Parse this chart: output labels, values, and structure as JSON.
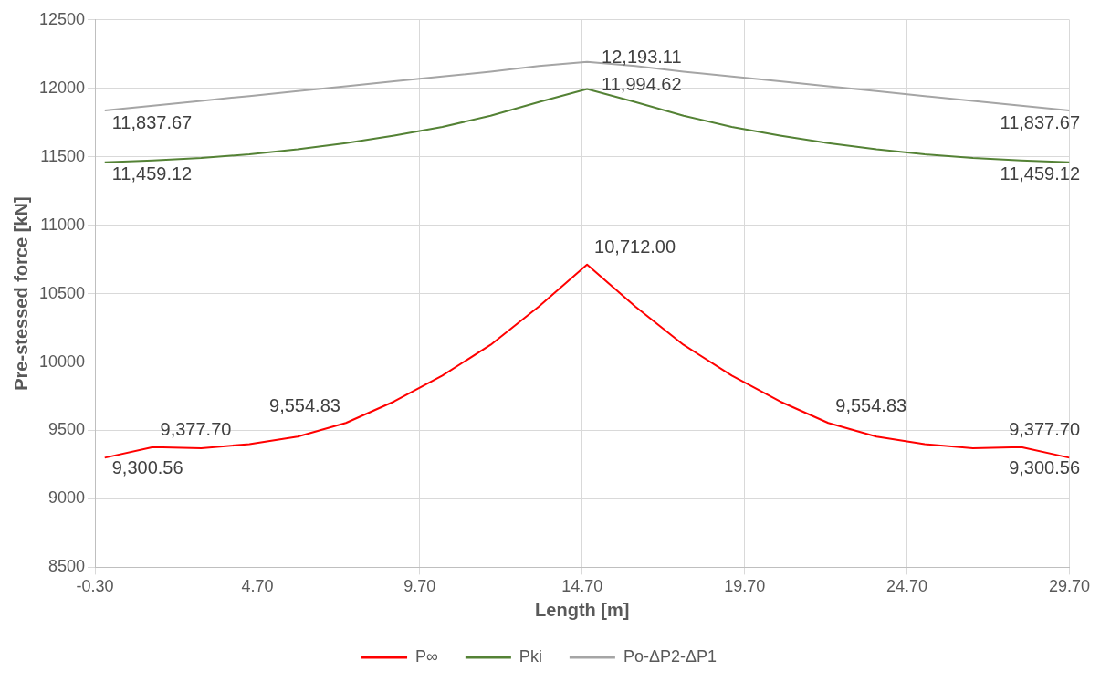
{
  "chart_data": {
    "type": "line",
    "xlabel": "Length [m]",
    "ylabel": "Pre-stessed force [kN]",
    "x": [
      0,
      1.485,
      2.97,
      4.455,
      5.94,
      7.425,
      8.91,
      10.395,
      11.88,
      13.365,
      14.85,
      16.335,
      17.82,
      19.305,
      20.79,
      22.275,
      23.76,
      25.245,
      26.73,
      28.215,
      29.7
    ],
    "xlim": [
      -0.3,
      29.7
    ],
    "xticks": [
      {
        "value": -0.3,
        "label": "-0.30"
      },
      {
        "value": 4.7,
        "label": "4.70"
      },
      {
        "value": 9.7,
        "label": "9.70"
      },
      {
        "value": 14.7,
        "label": "14.70"
      },
      {
        "value": 19.7,
        "label": "19.70"
      },
      {
        "value": 24.7,
        "label": "24.70"
      },
      {
        "value": 29.7,
        "label": "29.70"
      }
    ],
    "ylim": [
      8500,
      12500
    ],
    "yticks": [
      8500,
      9000,
      9500,
      10000,
      10500,
      11000,
      11500,
      12000,
      12500
    ],
    "grid": true,
    "legend": "bottom",
    "marker": "none",
    "line_style": "solid",
    "series": [
      {
        "name": "P∞",
        "color": "#ff0000",
        "values": [
          9300.56,
          9377.7,
          9370,
          9400,
          9455,
          9554.83,
          9712,
          9901,
          10126,
          10405,
          10712.0,
          10405,
          10126,
          9901,
          9712,
          9554.83,
          9455,
          9400,
          9370,
          9377.7,
          9300.56
        ],
        "value_labels": [
          "9,300.56",
          "9,377.70",
          null,
          null,
          null,
          "9,554.83",
          null,
          null,
          null,
          null,
          "10,712.00",
          null,
          null,
          null,
          null,
          "9,554.83",
          null,
          null,
          null,
          "9,377.70",
          "9,300.56"
        ]
      },
      {
        "name": "Pki",
        "color": "#548235",
        "values": [
          11459.12,
          11473,
          11491,
          11518,
          11555,
          11600,
          11655,
          11718,
          11800,
          11900,
          11994.62,
          11900,
          11800,
          11718,
          11655,
          11600,
          11555,
          11518,
          11491,
          11473,
          11459.12
        ],
        "value_labels": [
          "11,459.12",
          null,
          null,
          null,
          null,
          null,
          null,
          null,
          null,
          null,
          "11,994.62",
          null,
          null,
          null,
          null,
          null,
          null,
          null,
          null,
          null,
          "11,459.12"
        ]
      },
      {
        "name": "Po-ΔP2-ΔP1",
        "color": "#a5a5a5",
        "values": [
          11837.67,
          11873,
          11909,
          11944,
          11980,
          12015,
          12051,
          12087,
          12122,
          12164,
          12193.11,
          12164,
          12122,
          12087,
          12051,
          12015,
          11980,
          11944,
          11909,
          11873,
          11837.67
        ],
        "value_labels": [
          "11,837.67",
          null,
          null,
          null,
          null,
          null,
          null,
          null,
          null,
          null,
          "12,193.11",
          null,
          null,
          null,
          null,
          null,
          null,
          null,
          null,
          null,
          "11,837.67"
        ]
      }
    ]
  }
}
